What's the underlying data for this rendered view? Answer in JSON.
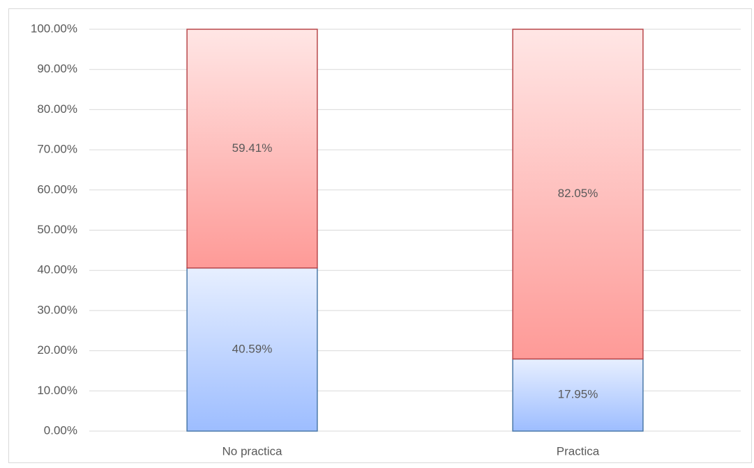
{
  "chart_data": {
    "type": "stacked_bar",
    "categories": [
      "No practica",
      "Practica"
    ],
    "series": [
      {
        "color": "#9dbdff",
        "values": [
          40.59,
          17.95
        ],
        "value_labels": [
          "40.59%",
          "17.95%"
        ]
      },
      {
        "color": "#fe9a97",
        "values": [
          59.41,
          82.05
        ],
        "value_labels": [
          "59.41%",
          "82.05%"
        ]
      }
    ],
    "ylim": [
      0,
      100
    ],
    "yticks": [
      {
        "value": 0,
        "label": "0.00%"
      },
      {
        "value": 10,
        "label": "10.00%"
      },
      {
        "value": 20,
        "label": "20.00%"
      },
      {
        "value": 30,
        "label": "30.00%"
      },
      {
        "value": 40,
        "label": "40.00%"
      },
      {
        "value": 50,
        "label": "50.00%"
      },
      {
        "value": 60,
        "label": "60.00%"
      },
      {
        "value": 70,
        "label": "70.00%"
      },
      {
        "value": 80,
        "label": "80.00%"
      },
      {
        "value": 90,
        "label": "90.00%"
      },
      {
        "value": 100,
        "label": "100.00%"
      }
    ],
    "grid": true
  }
}
